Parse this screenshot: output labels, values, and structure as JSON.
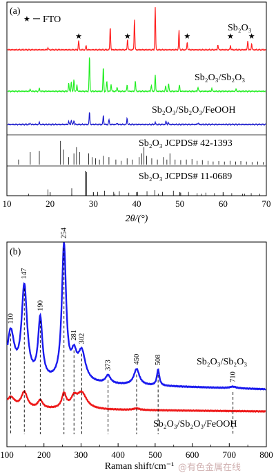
{
  "chart_data": [
    {
      "type": "line",
      "panel_label": "(a)",
      "xlabel": "2θ/(°)",
      "xlim": [
        10,
        70
      ],
      "xticks": [
        10,
        20,
        30,
        40,
        50,
        60,
        70
      ],
      "legend_marker": "★",
      "legend_text": "FTO",
      "series": [
        {
          "name": "Sb2O3",
          "color": "#ff2020",
          "peaks": [
            {
              "x": 26.6,
              "h": 0.22
            },
            {
              "x": 28.3,
              "h": 0.1
            },
            {
              "x": 33.9,
              "h": 0.55
            },
            {
              "x": 37.9,
              "h": 0.25
            },
            {
              "x": 39.5,
              "h": 0.72
            },
            {
              "x": 44.3,
              "h": 1.0
            },
            {
              "x": 49.8,
              "h": 0.45
            },
            {
              "x": 51.7,
              "h": 0.18
            },
            {
              "x": 58.8,
              "h": 0.12
            },
            {
              "x": 61.7,
              "h": 0.1
            },
            {
              "x": 65.7,
              "h": 0.22
            },
            {
              "x": 66.6,
              "h": 0.14
            },
            {
              "x": 19.5,
              "h": 0.05
            }
          ],
          "fto_stars_x": [
            26.6,
            37.9,
            51.7,
            61.7,
            66.6
          ]
        },
        {
          "name": "Sb2O3/Sb2O3",
          "color": "#22ee22",
          "peaks": [
            {
              "x": 15.4,
              "h": 0.06
            },
            {
              "x": 17.5,
              "h": 0.08
            },
            {
              "x": 24.3,
              "h": 0.22
            },
            {
              "x": 24.9,
              "h": 0.28
            },
            {
              "x": 25.5,
              "h": 0.35
            },
            {
              "x": 26.2,
              "h": 0.18
            },
            {
              "x": 29.1,
              "h": 1.0
            },
            {
              "x": 32.3,
              "h": 0.7
            },
            {
              "x": 33.1,
              "h": 0.3
            },
            {
              "x": 34.1,
              "h": 0.2
            },
            {
              "x": 35.5,
              "h": 0.12
            },
            {
              "x": 37.8,
              "h": 0.18
            },
            {
              "x": 39.7,
              "h": 0.28
            },
            {
              "x": 43.4,
              "h": 0.18
            },
            {
              "x": 44.3,
              "h": 0.45
            },
            {
              "x": 46.7,
              "h": 0.15
            },
            {
              "x": 47.4,
              "h": 0.22
            },
            {
              "x": 49.9,
              "h": 0.18
            },
            {
              "x": 54.2,
              "h": 0.12
            },
            {
              "x": 57.4,
              "h": 0.08
            },
            {
              "x": 63.0,
              "h": 0.06
            }
          ]
        },
        {
          "name": "Sb2O3/Sb2O3/FeOOH",
          "color": "#1a1acc",
          "peaks": [
            {
              "x": 15.4,
              "h": 0.08
            },
            {
              "x": 17.5,
              "h": 0.12
            },
            {
              "x": 24.3,
              "h": 0.18
            },
            {
              "x": 24.9,
              "h": 0.28
            },
            {
              "x": 25.5,
              "h": 0.25
            },
            {
              "x": 29.1,
              "h": 0.75
            },
            {
              "x": 32.3,
              "h": 0.55
            },
            {
              "x": 33.6,
              "h": 0.3
            },
            {
              "x": 35.5,
              "h": 0.1
            },
            {
              "x": 37.8,
              "h": 0.38
            },
            {
              "x": 44.3,
              "h": 0.12
            },
            {
              "x": 46.8,
              "h": 0.2
            },
            {
              "x": 47.3,
              "h": 0.14
            },
            {
              "x": 54.2,
              "h": 0.1
            }
          ]
        }
      ],
      "references": [
        {
          "name": "Sb2O3 JCPDS# 42-1393",
          "sticks": [
            {
              "x": 12.7,
              "h": 0.2
            },
            {
              "x": 15.4,
              "h": 0.5
            },
            {
              "x": 17.5,
              "h": 0.55
            },
            {
              "x": 22.4,
              "h": 0.95
            },
            {
              "x": 23.1,
              "h": 0.6
            },
            {
              "x": 24.3,
              "h": 0.3
            },
            {
              "x": 25.5,
              "h": 0.45
            },
            {
              "x": 26.1,
              "h": 0.7
            },
            {
              "x": 26.8,
              "h": 0.5
            },
            {
              "x": 28.9,
              "h": 0.45
            },
            {
              "x": 29.7,
              "h": 0.3
            },
            {
              "x": 30.5,
              "h": 0.25
            },
            {
              "x": 31.4,
              "h": 0.2
            },
            {
              "x": 32.3,
              "h": 0.35
            },
            {
              "x": 33.6,
              "h": 0.3
            },
            {
              "x": 35.2,
              "h": 0.2
            },
            {
              "x": 36.4,
              "h": 0.15
            },
            {
              "x": 37.8,
              "h": 0.25
            },
            {
              "x": 39.0,
              "h": 0.2
            },
            {
              "x": 40.6,
              "h": 0.3
            },
            {
              "x": 41.2,
              "h": 0.45
            },
            {
              "x": 41.7,
              "h": 0.7
            },
            {
              "x": 42.3,
              "h": 0.35
            },
            {
              "x": 43.5,
              "h": 0.25
            },
            {
              "x": 44.8,
              "h": 0.2
            },
            {
              "x": 46.2,
              "h": 0.3
            },
            {
              "x": 47.0,
              "h": 0.2
            },
            {
              "x": 47.7,
              "h": 0.45
            },
            {
              "x": 48.9,
              "h": 0.2
            },
            {
              "x": 50.2,
              "h": 0.18
            },
            {
              "x": 51.5,
              "h": 0.2
            },
            {
              "x": 52.8,
              "h": 0.22
            },
            {
              "x": 54.0,
              "h": 0.15
            },
            {
              "x": 55.2,
              "h": 0.18
            },
            {
              "x": 56.5,
              "h": 0.15
            },
            {
              "x": 57.7,
              "h": 0.12
            },
            {
              "x": 59.0,
              "h": 0.14
            },
            {
              "x": 60.3,
              "h": 0.12
            },
            {
              "x": 61.6,
              "h": 0.15
            },
            {
              "x": 62.9,
              "h": 0.12
            },
            {
              "x": 64.1,
              "h": 0.14
            },
            {
              "x": 65.4,
              "h": 0.12
            },
            {
              "x": 66.7,
              "h": 0.1
            },
            {
              "x": 68.0,
              "h": 0.12
            },
            {
              "x": 69.3,
              "h": 0.1
            }
          ]
        },
        {
          "name": "Sb2O3 JCPDS# 11-0689",
          "sticks": [
            {
              "x": 19.5,
              "h": 0.25
            },
            {
              "x": 25.0,
              "h": 0.3
            },
            {
              "x": 28.1,
              "h": 1.0
            },
            {
              "x": 28.4,
              "h": 0.95
            },
            {
              "x": 31.0,
              "h": 0.15
            },
            {
              "x": 32.6,
              "h": 0.2
            },
            {
              "x": 34.7,
              "h": 0.15
            },
            {
              "x": 36.0,
              "h": 0.18
            },
            {
              "x": 38.2,
              "h": 0.12
            },
            {
              "x": 40.2,
              "h": 0.15
            },
            {
              "x": 42.4,
              "h": 0.18
            },
            {
              "x": 44.2,
              "h": 0.22
            },
            {
              "x": 46.0,
              "h": 0.15
            },
            {
              "x": 48.5,
              "h": 0.2
            },
            {
              "x": 50.2,
              "h": 0.12
            },
            {
              "x": 52.0,
              "h": 0.15
            },
            {
              "x": 54.0,
              "h": 0.1
            },
            {
              "x": 56.0,
              "h": 0.12
            },
            {
              "x": 58.0,
              "h": 0.1
            },
            {
              "x": 60.0,
              "h": 0.08
            },
            {
              "x": 62.0,
              "h": 0.1
            },
            {
              "x": 64.5,
              "h": 0.08
            },
            {
              "x": 66.5,
              "h": 0.1
            },
            {
              "x": 68.5,
              "h": 0.08
            }
          ]
        }
      ]
    },
    {
      "type": "line",
      "panel_label": "(b)",
      "xlabel": "Raman shift/cm⁻¹",
      "xlim": [
        100,
        800
      ],
      "xticks": [
        100,
        200,
        300,
        400,
        500,
        600,
        700,
        800
      ],
      "series": [
        {
          "name": "Sb2O3/Sb2O3",
          "color": "#1a1aee",
          "baseline": 0.06,
          "peaks": [
            {
              "x": 110,
              "w": 12,
              "h": 0.3
            },
            {
              "x": 147,
              "w": 9,
              "h": 0.58
            },
            {
              "x": 190,
              "w": 7,
              "h": 0.38
            },
            {
              "x": 254,
              "w": 7,
              "h": 0.85
            },
            {
              "x": 281,
              "w": 9,
              "h": 0.14
            },
            {
              "x": 302,
              "w": 12,
              "h": 0.18
            },
            {
              "x": 373,
              "w": 8,
              "h": 0.05
            },
            {
              "x": 450,
              "w": 9,
              "h": 0.1
            },
            {
              "x": 508,
              "w": 4,
              "h": 0.1
            },
            {
              "x": 710,
              "w": 10,
              "h": 0.01
            }
          ]
        },
        {
          "name": "Sb2O3/Sb2O3/FeOOH",
          "color": "#ee1a1a",
          "baseline": 0.02,
          "peaks": [
            {
              "x": 110,
              "w": 14,
              "h": 0.07
            },
            {
              "x": 147,
              "w": 10,
              "h": 0.1
            },
            {
              "x": 190,
              "w": 8,
              "h": 0.05
            },
            {
              "x": 254,
              "w": 7,
              "h": 0.09
            },
            {
              "x": 281,
              "w": 10,
              "h": 0.06
            },
            {
              "x": 302,
              "w": 16,
              "h": 0.1
            },
            {
              "x": 450,
              "w": 10,
              "h": 0.01
            }
          ]
        }
      ],
      "peak_labels": [
        110,
        147,
        190,
        254,
        281,
        302,
        373,
        450,
        508,
        710
      ]
    }
  ],
  "labels": {
    "panel_a": "(a)",
    "panel_b": "(b)",
    "fto_star": "★",
    "fto_text": "FTO",
    "a_red": "Sb₂O₃",
    "a_green": "Sb₂O₃/Sb₂O₃",
    "a_blue": "Sb₂O₃/Sb₂O₃/FeOOH",
    "ref1": "Sb₂O₃  JCPDS# 42-1393",
    "ref2": "Sb₂O₃  JCPDS# 11-0689",
    "a_xlabel": "2θ/(°)",
    "b_blue": "Sb₂O₃/Sb₂O₃",
    "b_red": "Sb₂O₃/Sb₂O₃/FeOOH",
    "b_xlabel": "Raman shift/cm⁻¹",
    "watermark": "@有色金属在线"
  }
}
